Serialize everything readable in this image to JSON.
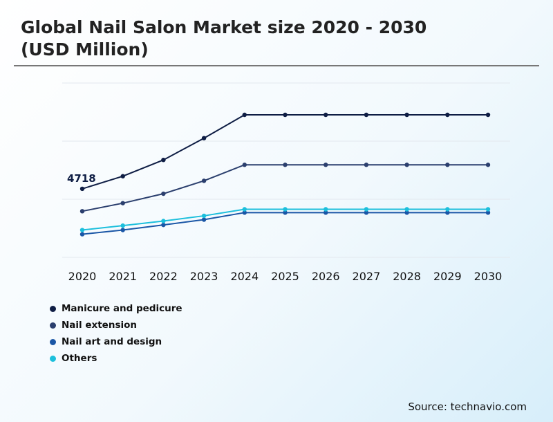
{
  "title": "Global Nail Salon Market size 2020 - 2030 (USD Million)",
  "source": "Source: technavio.com",
  "colors": {
    "manicure": "#0e1d44",
    "extension": "#2b3f6e",
    "art": "#1a56a6",
    "others": "#1cbfdc",
    "grid": "#e3e8ee"
  },
  "chart_data": {
    "type": "line",
    "title": "Global Nail Salon Market size 2020 - 2030 (USD Million)",
    "xlabel": "",
    "ylabel": "",
    "categories": [
      "2020",
      "2021",
      "2022",
      "2023",
      "2024",
      "2025",
      "2026",
      "2027",
      "2028",
      "2029",
      "2030"
    ],
    "ylim": [
      0,
      12000
    ],
    "grid": true,
    "y_ticks_shown": false,
    "legend_position": "bottom-left",
    "series": [
      {
        "name": "Manicure and pedicure",
        "color_key": "manicure",
        "values": [
          4718,
          5585,
          6705,
          8205,
          9810,
          9810,
          9810,
          9810,
          9810,
          9810,
          9810
        ]
      },
      {
        "name": "Nail extension",
        "color_key": "extension",
        "values": [
          3175,
          3730,
          4380,
          5270,
          6370,
          6370,
          6370,
          6370,
          6370,
          6370,
          6370
        ]
      },
      {
        "name": "Nail art and design",
        "color_key": "art",
        "values": [
          1590,
          1880,
          2230,
          2595,
          3080,
          3080,
          3080,
          3080,
          3080,
          3080,
          3080
        ]
      },
      {
        "name": "Others",
        "color_key": "others",
        "values": [
          1880,
          2185,
          2500,
          2860,
          3310,
          3310,
          3310,
          3310,
          3310,
          3310,
          3310
        ]
      }
    ],
    "annotations": [
      {
        "series": "Manicure and pedicure",
        "category": "2020",
        "text": "4718"
      }
    ]
  }
}
